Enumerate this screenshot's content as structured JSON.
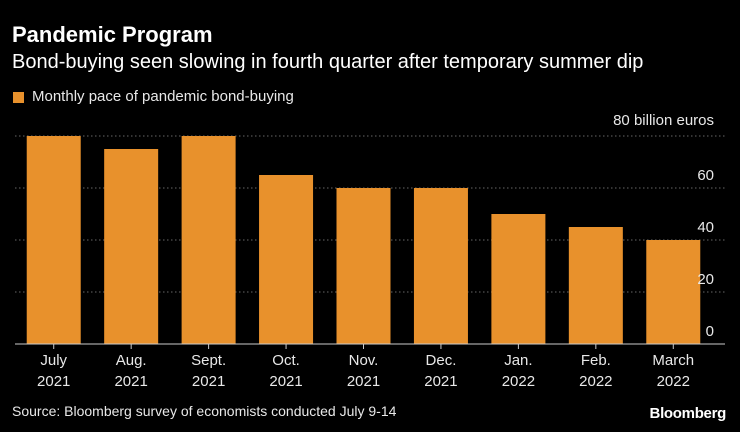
{
  "title": "Pandemic Program",
  "subtitle": "Bond-buying seen slowing in fourth quarter after temporary summer dip",
  "legend_label": "Monthly pace of pandemic bond-buying",
  "unit_label": "80 billion euros",
  "source": "Source: Bloomberg survey of economists conducted July 9-14",
  "brand": "Bloomberg",
  "colors": {
    "bar": "#E8912C",
    "background": "#000000",
    "grid": "#666666",
    "text": "#FFFFFF"
  },
  "chart_data": {
    "type": "bar",
    "title": "Pandemic Program",
    "subtitle": "Bond-buying seen slowing in fourth quarter after temporary summer dip",
    "categories": [
      "July 2021",
      "Aug. 2021",
      "Sept. 2021",
      "Oct. 2021",
      "Nov. 2021",
      "Dec. 2021",
      "Jan. 2022",
      "Feb. 2022",
      "March 2022"
    ],
    "category_lines": [
      [
        "July",
        "2021"
      ],
      [
        "Aug.",
        "2021"
      ],
      [
        "Sept.",
        "2021"
      ],
      [
        "Oct.",
        "2021"
      ],
      [
        "Nov.",
        "2021"
      ],
      [
        "Dec.",
        "2021"
      ],
      [
        "Jan.",
        "2022"
      ],
      [
        "Feb.",
        "2022"
      ],
      [
        "March",
        "2022"
      ]
    ],
    "series": [
      {
        "name": "Monthly pace of pandemic bond-buying",
        "values": [
          80,
          75,
          80,
          65,
          60,
          60,
          50,
          45,
          40
        ]
      }
    ],
    "xlabel": "",
    "ylabel": "billion euros",
    "ylim": [
      0,
      80
    ],
    "yticks": [
      0,
      20,
      40,
      60,
      80
    ],
    "ytick_labels": [
      "0",
      "20",
      "40",
      "60",
      ""
    ],
    "grid": true,
    "y_axis_side": "right",
    "legend_position": "top-left"
  }
}
